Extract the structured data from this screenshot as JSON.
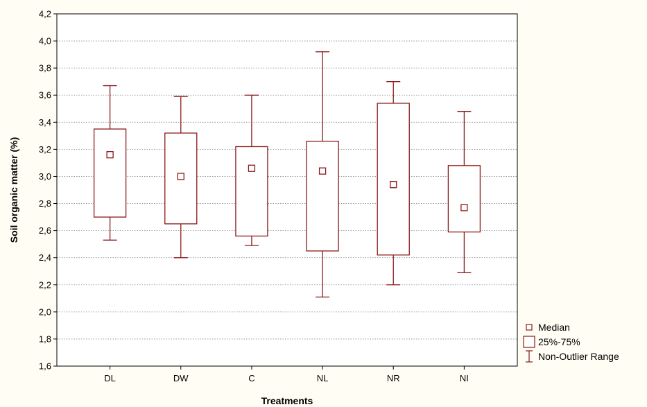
{
  "chart_data": {
    "type": "boxplot",
    "xlabel": "Treatments",
    "ylabel": "Soil organic matter (%)",
    "ylim": [
      1.6,
      4.2
    ],
    "yticks": [
      "1,6",
      "1,8",
      "2,0",
      "2,2",
      "2,4",
      "2,6",
      "2,8",
      "3,0",
      "3,2",
      "3,4",
      "3,6",
      "3,8",
      "4,0",
      "4,2"
    ],
    "ytick_values": [
      1.6,
      1.8,
      2.0,
      2.2,
      2.4,
      2.6,
      2.8,
      3.0,
      3.2,
      3.4,
      3.6,
      3.8,
      4.0,
      4.2
    ],
    "grid": "horizontal-dotted",
    "legend_position": "bottom-right-outside",
    "categories": [
      "DL",
      "DW",
      "C",
      "NL",
      "NR",
      "NI"
    ],
    "boxes": [
      {
        "category": "DL",
        "median": 3.16,
        "q1": 2.7,
        "q3": 3.35,
        "min": 2.53,
        "max": 3.67
      },
      {
        "category": "DW",
        "median": 3.0,
        "q1": 2.65,
        "q3": 3.32,
        "min": 2.4,
        "max": 3.59
      },
      {
        "category": "C",
        "median": 3.06,
        "q1": 2.56,
        "q3": 3.22,
        "min": 2.49,
        "max": 3.6
      },
      {
        "category": "NL",
        "median": 3.04,
        "q1": 2.45,
        "q3": 3.26,
        "min": 2.11,
        "max": 3.92
      },
      {
        "category": "NR",
        "median": 2.94,
        "q1": 2.42,
        "q3": 3.54,
        "min": 2.2,
        "max": 3.7
      },
      {
        "category": "NI",
        "median": 2.77,
        "q1": 2.59,
        "q3": 3.08,
        "min": 2.29,
        "max": 3.48
      }
    ],
    "legend": [
      {
        "key": "median",
        "label": "Median"
      },
      {
        "key": "box",
        "label": "25%-75%"
      },
      {
        "key": "range",
        "label": "Non-Outlier Range"
      }
    ],
    "colors": {
      "series": "#8b1a1a",
      "axis": "#000000",
      "grid": "#8a8a8a",
      "plot_bg": "#ffffff",
      "page_bg": "#fffdf4"
    }
  }
}
